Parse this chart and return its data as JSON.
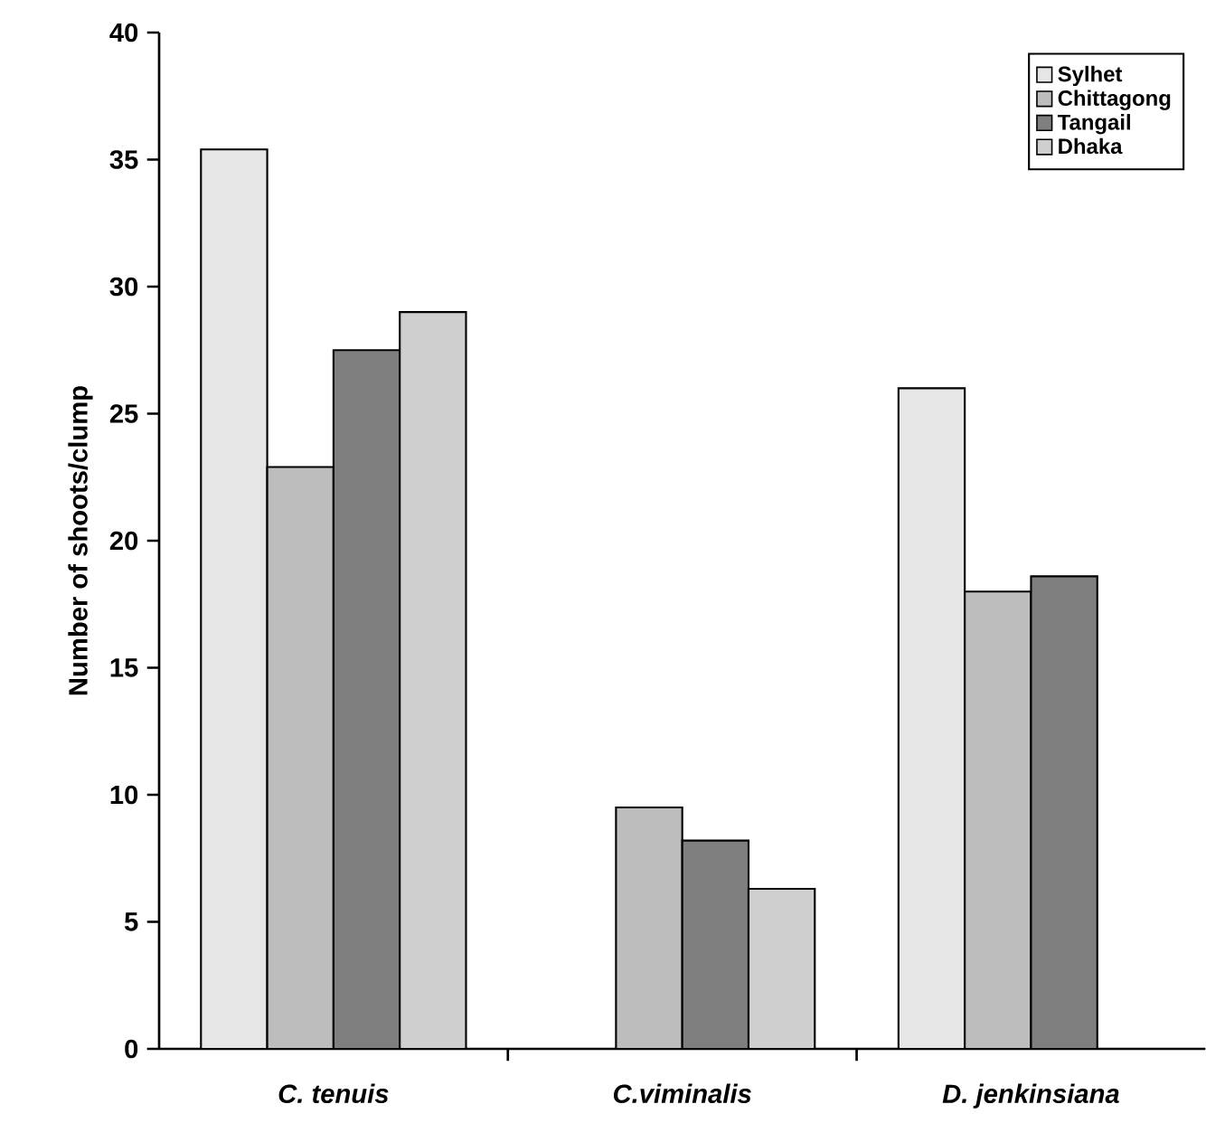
{
  "chart_data": {
    "type": "bar",
    "ylabel": "Number of shoots/clump",
    "categories": [
      "*C. tenuis*",
      "*C.viminalis*",
      "*D. jenkinsiana*"
    ],
    "series": [
      {
        "name": "Sylhet",
        "color": "#e6e6e6",
        "values": [
          35.4,
          null,
          26.0
        ]
      },
      {
        "name": "Chittagong",
        "color": "#bdbdbd",
        "values": [
          22.9,
          9.5,
          18.0
        ]
      },
      {
        "name": "Tangail",
        "color": "#7f7f7f",
        "values": [
          27.5,
          8.2,
          18.6
        ]
      },
      {
        "name": "Dhaka",
        "color": "#cfcfcf",
        "values": [
          29.0,
          6.3,
          null
        ]
      }
    ],
    "ylim": [
      0,
      40
    ],
    "yticks": [
      0,
      5,
      10,
      15,
      20,
      25,
      30,
      35,
      40
    ],
    "legend": "top right"
  }
}
